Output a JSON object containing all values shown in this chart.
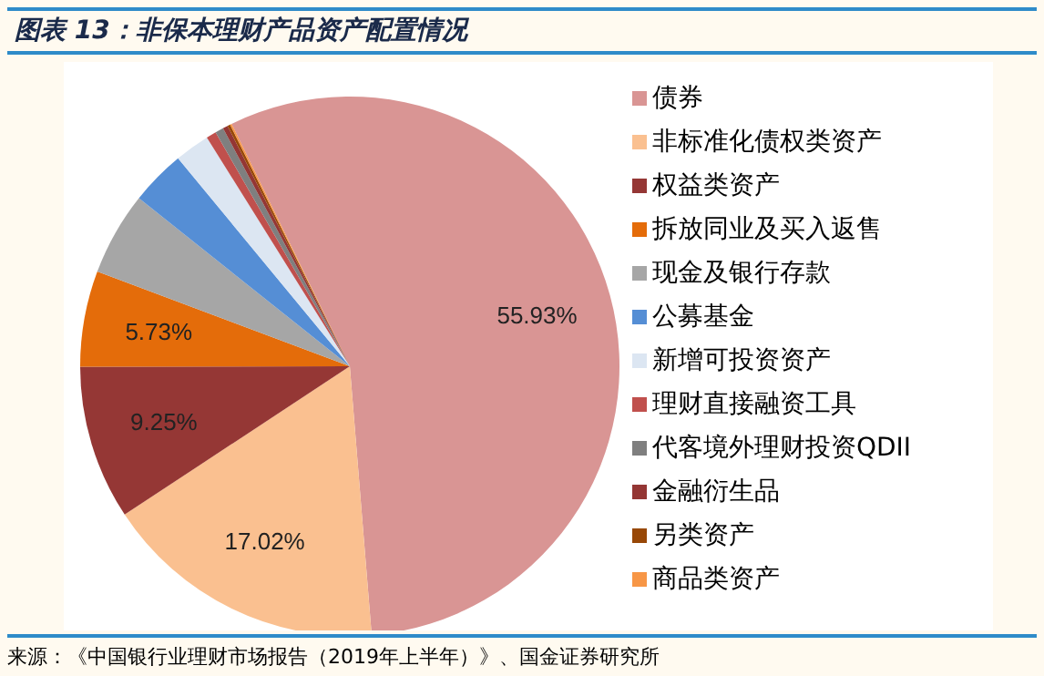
{
  "chart_data": {
    "type": "pie",
    "title": "图表 13：非保本理财产品资产配置情况",
    "categories": [
      "债券",
      "非标准化债权类资产",
      "权益类资产",
      "拆放同业及买入返售",
      "现金及银行存款",
      "公募基金",
      "新增可投资资产",
      "理财直接融资工具",
      "代客境外理财投资QDII",
      "金融衍生品",
      "另类资产",
      "商品类资产"
    ],
    "values": [
      55.93,
      17.02,
      9.25,
      5.73,
      5.0,
      3.3,
      2.1,
      0.6,
      0.5,
      0.3,
      0.17,
      0.1
    ],
    "value_labels": [
      "55.93%",
      "17.02%",
      "9.25%",
      "5.73%",
      null,
      null,
      null,
      null,
      null,
      null,
      null,
      null
    ],
    "colors": [
      "#d99594",
      "#fac090",
      "#953735",
      "#e46c0a",
      "#a6a6a6",
      "#558ed5",
      "#dce6f2",
      "#c0504d",
      "#7f7f7f",
      "#943634",
      "#984807",
      "#f79646"
    ],
    "legend": "right",
    "annotations": [
      "来源：《中国银行业理财市场报告（2019年上半年）》、国金证券研究所"
    ]
  }
}
